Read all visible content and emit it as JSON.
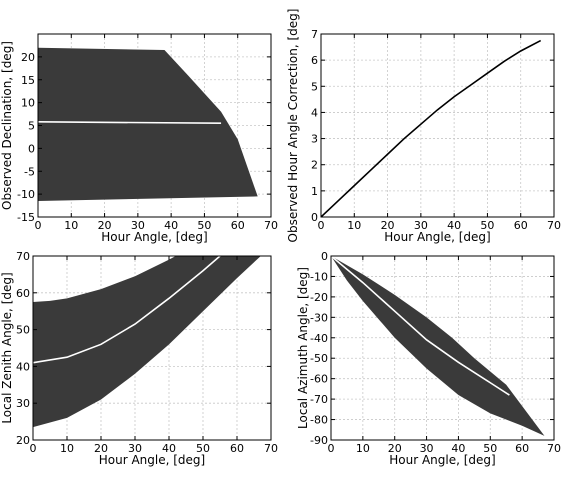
{
  "chart_data": [
    {
      "type": "area",
      "xlabel": "Hour Angle, [deg]",
      "ylabel": "Observed Declination, [deg]",
      "xlim": [
        0,
        70
      ],
      "ylim": [
        -15,
        25
      ],
      "xticks": [
        0,
        10,
        20,
        30,
        40,
        50,
        60,
        70
      ],
      "yticks": [
        -15,
        -10,
        -5,
        0,
        5,
        10,
        15,
        20
      ],
      "grid": true,
      "band_color": "#3a3a3a",
      "line_color": "#ffffff",
      "band_upper": [
        [
          0,
          22
        ],
        [
          38,
          21.5
        ],
        [
          45,
          16
        ],
        [
          55,
          8
        ],
        [
          60,
          2
        ],
        [
          66,
          -10.5
        ]
      ],
      "band_lower": [
        [
          0,
          -11.5
        ],
        [
          66,
          -10.5
        ]
      ],
      "center_line": [
        [
          0,
          5.8
        ],
        [
          55,
          5.5
        ]
      ]
    },
    {
      "type": "line",
      "xlabel": "Hour Angle, [deg]",
      "ylabel": "Observed Hour Angle Correction, [deg]",
      "xlim": [
        0,
        70
      ],
      "ylim": [
        0,
        7
      ],
      "xticks": [
        0,
        10,
        20,
        30,
        40,
        50,
        60,
        70
      ],
      "yticks": [
        0,
        1,
        2,
        3,
        4,
        5,
        6,
        7
      ],
      "grid": true,
      "line_color": "#000000",
      "series": [
        {
          "x": [
            0,
            5,
            10,
            15,
            20,
            25,
            30,
            35,
            40,
            45,
            50,
            55,
            60,
            66
          ],
          "values": [
            0,
            0.6,
            1.2,
            1.8,
            2.4,
            3.0,
            3.55,
            4.1,
            4.6,
            5.05,
            5.5,
            5.95,
            6.35,
            6.75
          ]
        }
      ]
    },
    {
      "type": "area",
      "xlabel": "Hour Angle, [deg]",
      "ylabel": "Local Zenith Angle, [deg]",
      "xlim": [
        0,
        70
      ],
      "ylim": [
        20,
        70
      ],
      "xticks": [
        0,
        10,
        20,
        30,
        40,
        50,
        60,
        70
      ],
      "yticks": [
        20,
        30,
        40,
        50,
        60,
        70
      ],
      "grid": true,
      "band_color": "#3a3a3a",
      "line_color": "#ffffff",
      "band_upper": [
        [
          0,
          57.5
        ],
        [
          5,
          57.8
        ],
        [
          10,
          58.5
        ],
        [
          20,
          61
        ],
        [
          30,
          64.5
        ],
        [
          40,
          69
        ],
        [
          42,
          70
        ],
        [
          67,
          70
        ]
      ],
      "band_lower": [
        [
          0,
          23.5
        ],
        [
          10,
          26
        ],
        [
          20,
          31
        ],
        [
          30,
          38
        ],
        [
          40,
          46
        ],
        [
          50,
          55
        ],
        [
          60,
          64
        ],
        [
          67,
          70
        ]
      ],
      "center_line": [
        [
          0,
          41
        ],
        [
          10,
          42.5
        ],
        [
          20,
          46
        ],
        [
          30,
          51.5
        ],
        [
          40,
          58.5
        ],
        [
          50,
          66
        ],
        [
          55,
          70
        ]
      ]
    },
    {
      "type": "area",
      "xlabel": "Hour Angle, [deg]",
      "ylabel": "Local Azimuth Angle, [deg]",
      "xlim": [
        0,
        70
      ],
      "ylim": [
        -90,
        0
      ],
      "xticks": [
        0,
        10,
        20,
        30,
        40,
        50,
        60,
        70
      ],
      "yticks": [
        -90,
        -80,
        -70,
        -60,
        -50,
        -40,
        -30,
        -20,
        -10,
        0
      ],
      "grid": true,
      "band_color": "#3a3a3a",
      "line_color": "#ffffff",
      "band_upper": [
        [
          0,
          0
        ],
        [
          10,
          -9
        ],
        [
          20,
          -19
        ],
        [
          30,
          -30
        ],
        [
          38,
          -40
        ],
        [
          45,
          -50
        ],
        [
          55,
          -63
        ],
        [
          67,
          -88
        ]
      ],
      "band_lower": [
        [
          0,
          0
        ],
        [
          5,
          -12
        ],
        [
          10,
          -22
        ],
        [
          20,
          -40
        ],
        [
          30,
          -55
        ],
        [
          40,
          -68
        ],
        [
          50,
          -77
        ],
        [
          60,
          -83
        ],
        [
          67,
          -88
        ]
      ],
      "center_line": [
        [
          0,
          0
        ],
        [
          10,
          -13
        ],
        [
          20,
          -27
        ],
        [
          30,
          -41
        ],
        [
          40,
          -52
        ],
        [
          50,
          -62
        ],
        [
          56,
          -68
        ]
      ]
    }
  ]
}
